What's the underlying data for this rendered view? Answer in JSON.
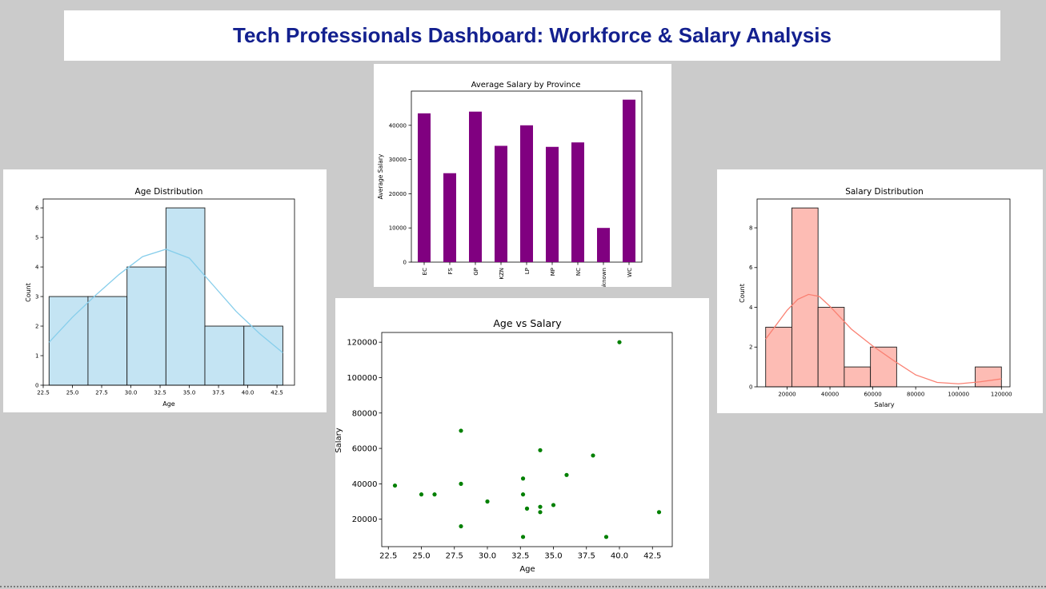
{
  "header": {
    "title": "Tech Professionals Dashboard: Workforce & Salary Analysis"
  },
  "chart_data": [
    {
      "id": "salary_by_province",
      "type": "bar",
      "title": "Average Salary by Province",
      "xlabel": "",
      "ylabel": "Average Salary",
      "categories": [
        "EC",
        "FS",
        "GP",
        "KZN",
        "LP",
        "MP",
        "NC",
        "Unknown",
        "WC"
      ],
      "values": [
        43500,
        26000,
        44000,
        34000,
        40000,
        33700,
        35000,
        10000,
        47500
      ],
      "ylim": [
        0,
        50000
      ],
      "yticks": [
        0,
        10000,
        20000,
        30000,
        40000
      ],
      "color": "#800080"
    },
    {
      "id": "age_distribution",
      "type": "histogram",
      "title": "Age Distribution",
      "xlabel": "Age",
      "ylabel": "Count",
      "bin_edges": [
        23,
        26.33,
        29.67,
        33,
        36.33,
        39.67,
        43
      ],
      "counts": [
        3,
        3,
        4,
        6,
        2,
        2
      ],
      "kde_x": [
        23,
        25,
        27,
        29,
        31,
        33,
        35,
        37,
        39,
        41,
        43
      ],
      "kde_y": [
        1.45,
        2.3,
        3.05,
        3.75,
        4.35,
        4.6,
        4.3,
        3.4,
        2.5,
        1.75,
        1.1
      ],
      "xlim": [
        22.5,
        44
      ],
      "ylim": [
        0,
        6.3
      ],
      "xticks": [
        22.5,
        25.0,
        27.5,
        30.0,
        32.5,
        35.0,
        37.5,
        40.0,
        42.5
      ],
      "yticks": [
        0,
        1,
        2,
        3,
        4,
        5,
        6
      ],
      "fill": "#c4e4f3",
      "line": "#87ceeb"
    },
    {
      "id": "age_vs_salary",
      "type": "scatter",
      "title": "Age vs Salary",
      "xlabel": "Age",
      "ylabel": "Salary",
      "points": [
        {
          "x": 23,
          "y": 39000
        },
        {
          "x": 25,
          "y": 34000
        },
        {
          "x": 26,
          "y": 34000
        },
        {
          "x": 28,
          "y": 70000
        },
        {
          "x": 28,
          "y": 40000
        },
        {
          "x": 28,
          "y": 16000
        },
        {
          "x": 30,
          "y": 30000
        },
        {
          "x": 32.7,
          "y": 43000
        },
        {
          "x": 32.7,
          "y": 34000
        },
        {
          "x": 32.7,
          "y": 10000
        },
        {
          "x": 33,
          "y": 26000
        },
        {
          "x": 34,
          "y": 59000
        },
        {
          "x": 34,
          "y": 27000
        },
        {
          "x": 34,
          "y": 24000
        },
        {
          "x": 35,
          "y": 28000
        },
        {
          "x": 36,
          "y": 45000
        },
        {
          "x": 38,
          "y": 56000
        },
        {
          "x": 39,
          "y": 10000
        },
        {
          "x": 40,
          "y": 120000
        },
        {
          "x": 43,
          "y": 24000
        }
      ],
      "xlim": [
        22,
        44
      ],
      "ylim": [
        4500,
        125500
      ],
      "xticks": [
        22.5,
        25.0,
        27.5,
        30.0,
        32.5,
        35.0,
        37.5,
        40.0,
        42.5
      ],
      "yticks": [
        20000,
        40000,
        60000,
        80000,
        100000,
        120000
      ],
      "color": "#008000"
    },
    {
      "id": "salary_distribution",
      "type": "histogram",
      "title": "Salary Distribution",
      "xlabel": "Salary",
      "ylabel": "Count",
      "bin_edges": [
        10000,
        22222,
        34444,
        46667,
        58889,
        71111,
        83333,
        95556,
        107778,
        120000
      ],
      "counts": [
        3,
        9,
        4,
        1,
        2,
        0,
        0,
        0,
        1
      ],
      "kde_x": [
        10000,
        20000,
        25000,
        30000,
        35000,
        40000,
        50000,
        60000,
        70000,
        80000,
        90000,
        100000,
        110000,
        120000
      ],
      "kde_y": [
        2.4,
        3.85,
        4.4,
        4.65,
        4.55,
        4.05,
        2.9,
        2.05,
        1.3,
        0.6,
        0.22,
        0.15,
        0.25,
        0.4
      ],
      "xlim": [
        6000,
        124000
      ],
      "ylim": [
        0,
        9.45
      ],
      "xticks": [
        20000,
        40000,
        60000,
        80000,
        100000,
        120000
      ],
      "yticks": [
        0,
        2,
        4,
        6,
        8
      ],
      "fill": "#fdbcb4",
      "line": "#fa8072"
    }
  ]
}
